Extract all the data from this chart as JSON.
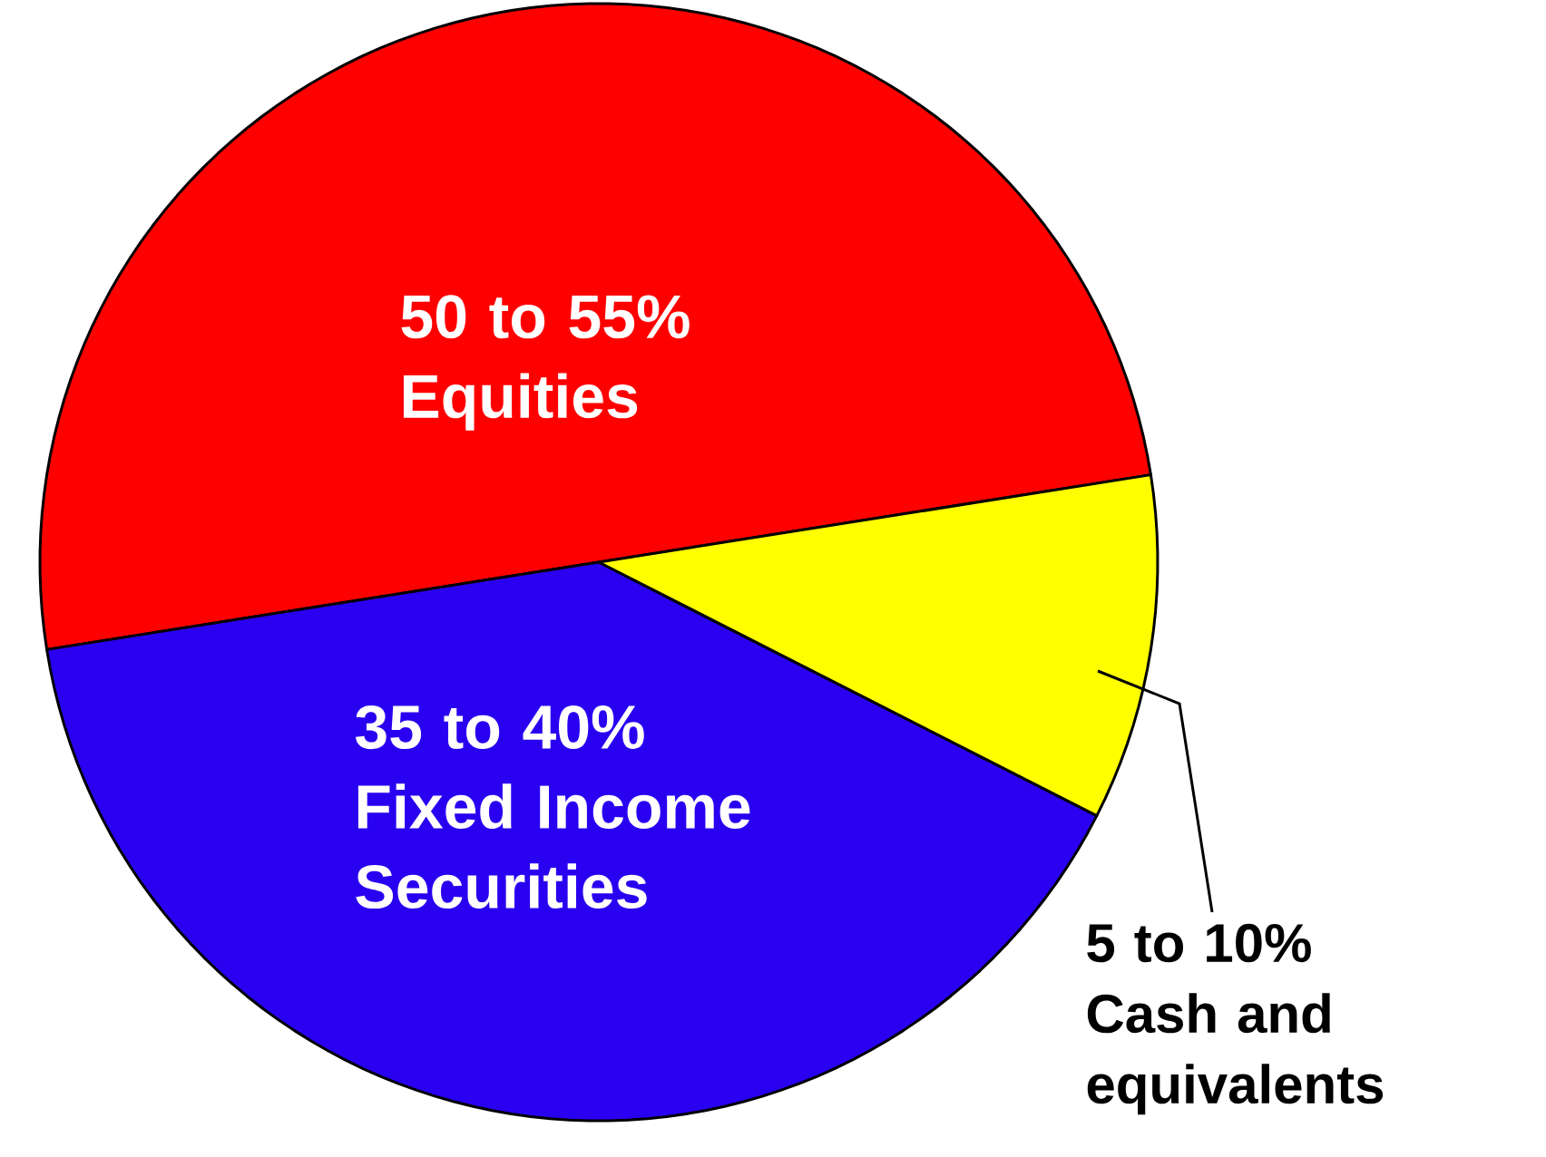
{
  "chart_data": {
    "type": "pie",
    "categories": [
      "Equities",
      "Fixed Income Securities",
      "Cash and equivalents"
    ],
    "values": [
      50,
      40,
      10
    ],
    "colors": [
      "#ff0000",
      "#2a00f0",
      "#ffff00"
    ],
    "value_labels": [
      "50 to 55%",
      "35 to 40%",
      "5 to 10%"
    ]
  }
}
